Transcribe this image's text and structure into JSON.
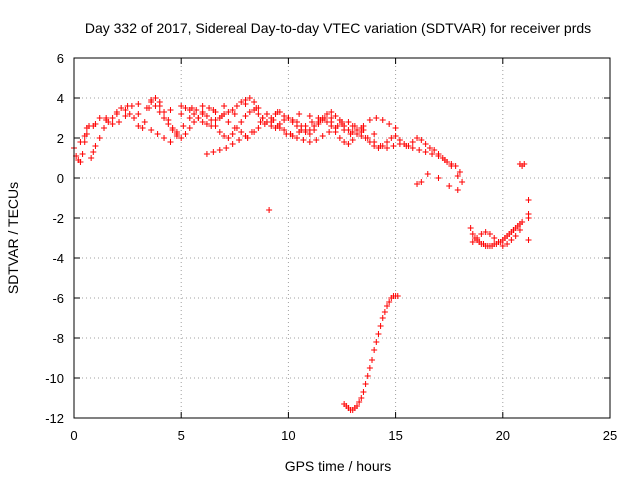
{
  "chart_data": {
    "type": "scatter",
    "title": "Day 332 of 2017, Sidereal Day-to-day VTEC variation (SDTVAR) for receiver prds",
    "xlabel": "GPS time / hours",
    "ylabel": "SDTVAR / TECUs",
    "xlim": [
      0,
      25
    ],
    "ylim": [
      -12,
      6
    ],
    "xticks": [
      0,
      5,
      10,
      15,
      20,
      25
    ],
    "yticks": [
      -12,
      -10,
      -8,
      -6,
      -4,
      -2,
      0,
      2,
      4,
      6
    ],
    "grid": true,
    "marker": "+",
    "color": "#ff0000",
    "series": [
      {
        "name": "prds",
        "x": [
          0.0,
          0.1,
          0.2,
          0.3,
          0.4,
          0.5,
          0.6,
          0.7,
          0.8,
          0.9,
          1.0,
          1.2,
          1.4,
          1.6,
          1.8,
          2.0,
          2.2,
          2.4,
          2.6,
          2.8,
          3.0,
          3.2,
          3.4,
          3.6,
          3.8,
          4.0,
          4.2,
          4.4,
          4.6,
          4.8,
          5.0,
          5.2,
          5.4,
          5.6,
          5.8,
          6.0,
          6.2,
          6.4,
          6.6,
          6.8,
          7.0,
          7.2,
          7.4,
          7.6,
          7.8,
          8.0,
          8.2,
          8.4,
          8.6,
          8.8,
          9.0,
          9.2,
          9.4,
          9.6,
          9.8,
          10.0,
          10.2,
          10.4,
          10.6,
          10.8,
          11.0,
          11.2,
          11.4,
          11.6,
          11.8,
          12.0,
          12.2,
          12.4,
          12.6,
          12.8,
          13.0,
          13.2,
          13.4,
          13.6,
          13.8,
          14.0,
          14.2,
          14.4,
          14.6,
          14.8,
          15.0,
          15.2,
          15.4,
          15.6,
          15.8,
          16.0,
          16.2,
          16.4,
          16.6,
          16.8,
          17.0,
          17.2,
          17.4,
          17.6,
          17.8,
          18.0,
          0.3,
          0.6,
          0.9,
          1.2,
          1.5,
          1.8,
          2.1,
          2.4,
          2.7,
          3.0,
          3.3,
          3.6,
          3.9,
          4.2,
          4.5,
          4.8,
          5.1,
          5.4,
          5.7,
          6.0,
          6.3,
          6.6,
          6.9,
          7.2,
          7.5,
          7.8,
          8.1,
          8.4,
          8.7,
          9.0,
          9.3,
          9.6,
          9.9,
          10.2,
          10.5,
          10.8,
          11.1,
          11.4,
          11.7,
          12.0,
          12.3,
          12.6,
          12.9,
          13.2,
          13.5,
          13.8,
          14.1,
          14.4,
          14.7,
          15.0,
          0.5,
          1.0,
          1.5,
          2.0,
          2.5,
          3.0,
          3.5,
          4.0,
          4.5,
          5.0,
          5.5,
          6.0,
          6.5,
          7.0,
          7.5,
          8.0,
          8.5,
          9.0,
          9.5,
          10.0,
          10.5,
          11.0,
          11.5,
          12.0,
          12.5,
          13.0,
          13.5,
          14.0,
          3.6,
          3.8,
          4.0,
          4.2,
          4.4,
          4.6,
          4.8,
          5.0,
          5.2,
          5.4,
          5.6,
          5.8,
          6.0,
          6.2,
          6.4,
          6.6,
          6.8,
          7.0,
          7.2,
          7.4,
          7.6,
          7.8,
          8.0,
          8.2,
          8.4,
          8.6,
          8.8,
          9.0,
          9.2,
          9.4,
          9.6,
          9.8,
          10.0,
          10.2,
          10.4,
          10.6,
          10.8,
          11.0,
          11.2,
          11.4,
          11.6,
          11.8,
          12.0,
          12.2,
          12.4,
          12.6,
          12.8,
          13.0,
          13.2,
          13.4,
          6.2,
          6.5,
          6.8,
          7.1,
          7.4,
          7.7,
          8.0,
          8.3,
          8.6,
          8.9,
          9.2,
          9.5,
          9.8,
          10.1,
          10.4,
          10.7,
          11.0,
          11.3,
          11.6,
          11.9,
          12.2,
          12.5,
          12.8,
          13.1,
          13.4,
          13.7,
          14.0,
          14.3,
          14.6,
          14.9,
          15.2,
          15.5,
          15.8,
          16.1,
          16.4,
          16.7,
          17.0,
          17.3,
          17.6,
          17.9,
          16.0,
          16.2,
          16.5,
          17.0,
          17.5,
          17.9,
          18.1,
          9.1,
          12.6,
          12.7,
          12.8,
          12.9,
          13.0,
          13.1,
          13.2,
          13.3,
          13.4,
          13.5,
          13.6,
          13.7,
          13.8,
          13.9,
          14.0,
          14.1,
          14.2,
          14.3,
          14.4,
          14.5,
          14.6,
          14.7,
          14.8,
          14.9,
          15.0,
          15.1,
          18.5,
          18.6,
          18.7,
          18.8,
          18.9,
          19.0,
          19.1,
          19.2,
          19.3,
          19.4,
          19.5,
          19.6,
          19.7,
          19.8,
          19.9,
          20.0,
          20.1,
          20.2,
          20.3,
          20.4,
          20.5,
          20.6,
          20.7,
          20.8,
          20.9,
          18.6,
          18.8,
          19.0,
          19.2,
          19.4,
          19.6,
          19.8,
          20.0,
          20.2,
          20.4,
          20.6,
          20.8,
          20.8,
          20.9,
          21.0,
          21.2,
          21.2,
          21.2,
          21.2
        ],
        "y": [
          1.5,
          1.1,
          0.9,
          0.8,
          1.2,
          1.8,
          2.5,
          2.6,
          1.0,
          1.3,
          1.6,
          2.0,
          2.5,
          2.8,
          3.0,
          3.2,
          3.5,
          3.4,
          3.2,
          3.0,
          2.6,
          2.5,
          3.5,
          3.9,
          4.0,
          3.8,
          3.3,
          2.9,
          2.5,
          2.3,
          3.2,
          3.5,
          3.4,
          3.2,
          3.0,
          2.8,
          2.7,
          2.6,
          2.9,
          3.0,
          3.2,
          3.3,
          3.4,
          3.6,
          3.8,
          3.9,
          4.0,
          3.8,
          3.5,
          3.0,
          2.8,
          3.0,
          3.2,
          3.3,
          3.1,
          3.0,
          2.9,
          2.8,
          2.6,
          2.4,
          2.2,
          2.4,
          2.7,
          3.0,
          3.2,
          3.3,
          3.1,
          2.9,
          2.6,
          2.4,
          2.3,
          2.2,
          2.1,
          2.0,
          1.8,
          1.6,
          1.5,
          1.6,
          1.8,
          2.0,
          2.1,
          1.9,
          1.7,
          1.6,
          1.8,
          2.0,
          1.9,
          1.7,
          1.5,
          1.4,
          1.2,
          1.0,
          0.8,
          0.7,
          0.6,
          0.3,
          1.8,
          2.2,
          2.6,
          3.0,
          2.9,
          2.7,
          2.8,
          3.1,
          3.6,
          3.2,
          2.8,
          2.4,
          2.2,
          2.0,
          1.8,
          2.1,
          2.6,
          3.0,
          3.4,
          3.6,
          3.5,
          3.3,
          3.1,
          2.8,
          2.5,
          2.3,
          2.0,
          2.3,
          2.8,
          3.2,
          2.9,
          2.5,
          2.2,
          2.1,
          2.3,
          2.6,
          2.8,
          3.0,
          3.0,
          2.8,
          2.6,
          2.4,
          2.2,
          2.4,
          2.6,
          2.9,
          3.0,
          2.9,
          2.7,
          2.5,
          2.1,
          2.7,
          3.0,
          3.3,
          3.6,
          3.7,
          3.5,
          3.6,
          3.4,
          3.6,
          3.5,
          3.3,
          3.4,
          3.6,
          3.2,
          3.7,
          3.5,
          3.2,
          3.3,
          3.0,
          3.2,
          3.1,
          2.9,
          3.0,
          2.8,
          2.6,
          2.4,
          2.2,
          3.8,
          3.6,
          3.3,
          3.0,
          2.7,
          2.4,
          2.2,
          2.0,
          2.2,
          2.5,
          2.8,
          3.0,
          3.2,
          3.1,
          2.9,
          2.6,
          2.3,
          2.1,
          2.0,
          2.2,
          2.5,
          2.8,
          3.1,
          3.3,
          3.4,
          3.2,
          3.0,
          2.8,
          2.6,
          2.5,
          2.7,
          2.9,
          3.0,
          2.8,
          2.6,
          2.4,
          2.3,
          2.4,
          2.6,
          2.8,
          2.9,
          2.8,
          2.6,
          2.3,
          2.0,
          1.8,
          1.7,
          1.9,
          2.2,
          2.5,
          1.2,
          1.3,
          1.4,
          1.5,
          1.7,
          1.9,
          2.1,
          2.3,
          2.5,
          2.7,
          2.8,
          2.6,
          2.4,
          2.2,
          2.0,
          1.9,
          1.8,
          1.9,
          2.1,
          2.3,
          2.5,
          2.7,
          2.8,
          2.6,
          2.3,
          2.0,
          1.8,
          1.6,
          1.5,
          1.6,
          1.7,
          1.6,
          1.5,
          1.4,
          1.3,
          1.2,
          1.1,
          0.9,
          0.6,
          0.1,
          -0.3,
          -0.2,
          0.2,
          0.0,
          -0.4,
          -0.6,
          -0.2,
          -1.6,
          -11.3,
          -11.4,
          -11.5,
          -11.6,
          -11.6,
          -11.5,
          -11.4,
          -11.2,
          -11.0,
          -10.7,
          -10.3,
          -9.9,
          -9.5,
          -9.1,
          -8.6,
          -8.2,
          -7.8,
          -7.4,
          -7.0,
          -6.7,
          -6.4,
          -6.2,
          -6.0,
          -5.9,
          -5.9,
          -5.9,
          -2.5,
          -2.8,
          -3.0,
          -3.1,
          -3.2,
          -3.3,
          -3.3,
          -3.4,
          -3.4,
          -3.4,
          -3.4,
          -3.3,
          -3.3,
          -3.2,
          -3.2,
          -3.1,
          -3.0,
          -2.9,
          -2.8,
          -2.7,
          -2.6,
          -2.5,
          -2.4,
          -2.3,
          -2.2,
          -3.2,
          -3.0,
          -2.8,
          -2.7,
          -2.8,
          -3.0,
          -3.2,
          -3.4,
          -3.3,
          -3.1,
          -2.9,
          -2.6,
          0.7,
          0.6,
          0.7,
          -1.1,
          -1.8,
          -2.0,
          -3.1
        ]
      }
    ]
  }
}
